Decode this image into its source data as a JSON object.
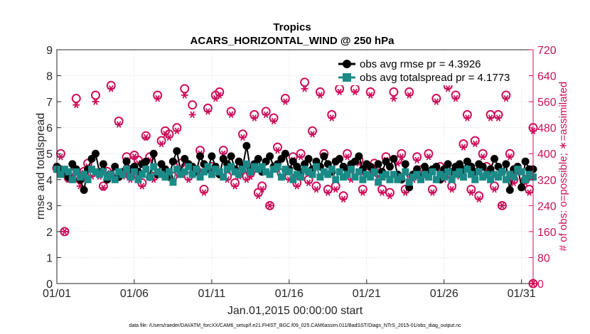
{
  "chart_data": {
    "type": "line",
    "title": "Tropics",
    "subtitle": "ACARS_HORIZONTAL_WIND @ 250 hPa",
    "xlabel": "Jan.01,2015 00:00:00 start",
    "ylabel": "rmse and totalspread",
    "ylabel_right": "# of obs: o=possible; ∗=assimilated",
    "footnote": "data file: /Users/raeder/DAI/ATM_forcXX/CAM6_setup/f.e21.FHIST_BGC.f09_025.CAM6assim.011/BadSST/Diags_NTrS_2015-01/obs_diag_output.nc",
    "xlim": [
      0,
      30.75
    ],
    "ylim": [
      0,
      9
    ],
    "ylim_right": [
      0,
      720
    ],
    "x_ticks": [
      0,
      5,
      10,
      15,
      20,
      25,
      30
    ],
    "x_tick_labels": [
      "01/01",
      "01/06",
      "01/11",
      "01/16",
      "01/21",
      "01/26",
      "01/31"
    ],
    "y_ticks": [
      "0",
      "1",
      "2",
      "3",
      "4",
      "5",
      "6",
      "7",
      "8",
      "9"
    ],
    "y_ticks_right": [
      "0",
      "80",
      "160",
      "240",
      "320",
      "400",
      "480",
      "560",
      "640",
      "720"
    ],
    "grid": true,
    "legend_position": "top-right",
    "x": [
      0,
      0.25,
      0.5,
      0.75,
      1,
      1.25,
      1.5,
      1.75,
      2,
      2.25,
      2.5,
      2.75,
      3,
      3.25,
      3.5,
      3.75,
      4,
      4.25,
      4.5,
      4.75,
      5,
      5.25,
      5.5,
      5.75,
      6,
      6.25,
      6.5,
      6.75,
      7,
      7.25,
      7.5,
      7.75,
      8,
      8.25,
      8.5,
      8.75,
      9,
      9.25,
      9.5,
      9.75,
      10,
      10.25,
      10.5,
      10.75,
      11,
      11.25,
      11.5,
      11.75,
      12,
      12.25,
      12.5,
      12.75,
      13,
      13.25,
      13.5,
      13.75,
      14,
      14.25,
      14.5,
      14.75,
      15,
      15.25,
      15.5,
      15.75,
      16,
      16.25,
      16.5,
      16.75,
      17,
      17.25,
      17.5,
      17.75,
      18,
      18.25,
      18.5,
      18.75,
      19,
      19.25,
      19.5,
      19.75,
      20,
      20.25,
      20.5,
      20.75,
      21,
      21.25,
      21.5,
      21.75,
      22,
      22.25,
      22.5,
      22.75,
      23,
      23.25,
      23.5,
      23.75,
      24,
      24.25,
      24.5,
      24.75,
      25,
      25.25,
      25.5,
      25.75,
      26,
      26.25,
      26.5,
      26.75,
      27,
      27.25,
      27.5,
      27.75,
      28,
      28.25,
      28.5,
      28.75,
      29,
      29.25,
      29.5,
      29.75,
      30,
      30.25,
      30.5,
      30.75
    ],
    "series": [
      {
        "name": "obs avg rmse pr = 4.3926",
        "color": "#000000",
        "marker": "circle",
        "axis": "left",
        "values": [
          4.5,
          4.4,
          4.3,
          4.1,
          4.6,
          4.4,
          4.0,
          3.6,
          4.4,
          4.8,
          5.0,
          4.3,
          4.6,
          4.0,
          4.2,
          4.5,
          4.1,
          4.3,
          4.7,
          4.4,
          4.5,
          4.3,
          4.6,
          4.7,
          4.1,
          5.0,
          4.2,
          4.6,
          4.4,
          4.1,
          4.7,
          5.1,
          4.3,
          4.8,
          4.6,
          4.5,
          4.3,
          4.9,
          4.6,
          4.4,
          4.9,
          4.5,
          4.2,
          4.8,
          4.6,
          4.9,
          4.4,
          4.7,
          4.5,
          5.3,
          4.4,
          4.6,
          4.8,
          4.3,
          4.7,
          4.9,
          4.5,
          4.6,
          4.8,
          5.0,
          4.4,
          4.7,
          4.5,
          4.3,
          4.6,
          4.8,
          4.4,
          4.7,
          4.5,
          4.9,
          4.6,
          4.3,
          4.7,
          4.8,
          4.5,
          4.4,
          4.6,
          4.7,
          4.9,
          4.4,
          4.6,
          4.5,
          4.3,
          4.6,
          4.3,
          4.7,
          4.5,
          4.8,
          4.2,
          4.0,
          4.6,
          3.7,
          4.2,
          4.4,
          4.1,
          4.5,
          4.3,
          4.4,
          4.5,
          4.0,
          4.4,
          4.6,
          4.3,
          4.5,
          4.6,
          4.4,
          4.7,
          4.5,
          4.3,
          4.6,
          4.5,
          4.2,
          4.4,
          4.8,
          4.5,
          4.3,
          4.6,
          3.6,
          4.4,
          4.5,
          3.7,
          4.7,
          4.4,
          4.4
        ]
      },
      {
        "name": "obs avg totalspread pr = 4.1773",
        "color": "#1a8a87",
        "marker": "square",
        "axis": "left",
        "values": [
          4.4,
          4.2,
          4.4,
          4.3,
          4.0,
          4.3,
          4.1,
          4.2,
          4.0,
          4.4,
          4.3,
          4.2,
          4.3,
          4.1,
          4.2,
          4.0,
          4.3,
          4.2,
          4.4,
          4.1,
          4.3,
          4.0,
          4.2,
          4.4,
          4.1,
          4.5,
          4.3,
          4.2,
          4.1,
          4.3,
          3.9,
          4.4,
          4.2,
          4.3,
          4.5,
          4.2,
          4.4,
          4.1,
          4.3,
          4.5,
          4.2,
          4.4,
          4.3,
          4.1,
          4.4,
          4.5,
          4.3,
          4.2,
          4.4,
          4.6,
          4.3,
          4.5,
          4.4,
          4.5,
          4.3,
          4.2,
          4.4,
          4.5,
          4.1,
          4.4,
          4.3,
          4.0,
          4.2,
          4.1,
          4.4,
          4.3,
          4.2,
          4.5,
          4.1,
          4.3,
          4.2,
          4.4,
          4.0,
          4.3,
          4.1,
          4.2,
          4.4,
          4.1,
          4.3,
          4.0,
          4.2,
          4.1,
          4.3,
          3.9,
          4.1,
          4.2,
          4.0,
          4.2,
          4.0,
          4.1,
          4.3,
          3.9,
          4.1,
          4.2,
          4.0,
          4.2,
          4.1,
          4.3,
          4.0,
          4.2,
          4.1,
          4.3,
          4.0,
          4.2,
          4.3,
          4.1,
          4.4,
          4.2,
          4.0,
          4.3,
          4.1,
          4.2,
          4.0,
          4.2,
          4.1,
          4.3,
          4.0,
          4.2,
          4.1,
          4.4,
          4.3,
          4.0,
          4.2,
          4.1
        ]
      },
      {
        "name": "obs possible",
        "color": "#cc0f5a",
        "marker": "open-circle",
        "axis": "right",
        "values": [
          355,
          400,
          160,
          325,
          340,
          570,
          320,
          345,
          370,
          340,
          580,
          340,
          300,
          345,
          610,
          340,
          500,
          340,
          390,
          330,
          395,
          380,
          310,
          455,
          390,
          330,
          580,
          440,
          470,
          460,
          330,
          480,
          370,
          600,
          330,
          550,
          350,
          410,
          290,
          540,
          360,
          580,
          590,
          410,
          330,
          530,
          310,
          340,
          460,
          330,
          340,
          520,
          280,
          300,
          530,
          240,
          510,
          420,
          340,
          570,
          330,
          390,
          310,
          400,
          620,
          320,
          470,
          300,
          590,
          400,
          290,
          520,
          300,
          600,
          270,
          400,
          330,
          600,
          380,
          290,
          340,
          590,
          370,
          340,
          290,
          390,
          280,
          590,
          380,
          400,
          290,
          590,
          330,
          390,
          350,
          340,
          400,
          290,
          570,
          360,
          330,
          610,
          300,
          580,
          340,
          430,
          520,
          290,
          440,
          270,
          400,
          360,
          520,
          300,
          520,
          240,
          580,
          400,
          320,
          350,
          660,
          320,
          290,
          480
        ]
      },
      {
        "name": "obs assimilated",
        "color": "#cc0f5a",
        "marker": "asterisk",
        "axis": "right",
        "values": [
          350,
          390,
          160,
          320,
          335,
          550,
          300,
          340,
          360,
          330,
          560,
          330,
          295,
          340,
          600,
          330,
          490,
          330,
          380,
          320,
          390,
          370,
          300,
          450,
          380,
          320,
          570,
          430,
          460,
          450,
          320,
          470,
          360,
          580,
          320,
          520,
          340,
          400,
          280,
          530,
          350,
          570,
          580,
          400,
          320,
          520,
          300,
          330,
          450,
          320,
          330,
          510,
          270,
          290,
          520,
          240,
          500,
          410,
          330,
          560,
          320,
          380,
          300,
          390,
          600,
          310,
          460,
          290,
          580,
          390,
          280,
          510,
          290,
          590,
          260,
          390,
          320,
          590,
          370,
          280,
          330,
          580,
          360,
          330,
          280,
          380,
          270,
          570,
          370,
          390,
          280,
          580,
          320,
          380,
          340,
          330,
          390,
          280,
          560,
          350,
          320,
          600,
          290,
          570,
          330,
          420,
          510,
          280,
          430,
          260,
          390,
          350,
          510,
          290,
          510,
          240,
          570,
          390,
          310,
          340,
          640,
          310,
          280,
          470
        ]
      }
    ],
    "endpoint_right_marker_value": 0
  }
}
